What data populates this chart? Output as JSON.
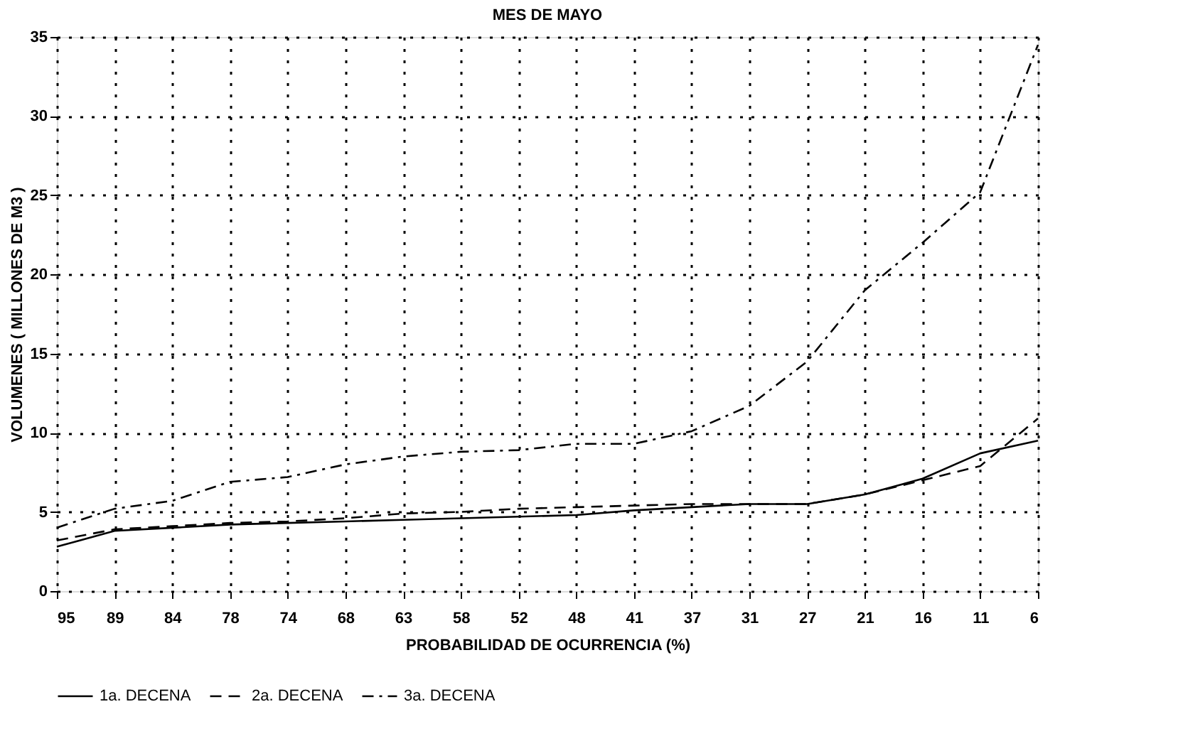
{
  "chart_data": {
    "type": "line",
    "title": "MES DE MAYO",
    "xlabel": "PROBABILIDAD DE OCURRENCIA (%)",
    "ylabel": "VOLUMENES  ( MILLONES DE M3 )",
    "categories": [
      "95",
      "89",
      "84",
      "78",
      "74",
      "68",
      "63",
      "58",
      "52",
      "48",
      "41",
      "37",
      "31",
      "27",
      "21",
      "16",
      "11",
      "6"
    ],
    "series": [
      {
        "name": "1a. DECENA",
        "color": "#000000",
        "line_style": "solid",
        "values": [
          2.8,
          3.8,
          4.0,
          4.2,
          4.3,
          4.4,
          4.5,
          4.6,
          4.7,
          4.8,
          5.1,
          5.3,
          5.5,
          5.5,
          6.1,
          7.1,
          8.7,
          9.5
        ]
      },
      {
        "name": "2a. DECENA",
        "color": "#000000",
        "line_style": "dashed",
        "values": [
          3.2,
          3.9,
          4.1,
          4.3,
          4.4,
          4.6,
          4.9,
          5.0,
          5.2,
          5.3,
          5.4,
          5.5,
          5.5,
          5.5,
          6.1,
          7.0,
          7.9,
          10.9
        ]
      },
      {
        "name": "3a. DECENA",
        "color": "#000000",
        "line_style": "dashdot",
        "values": [
          4.0,
          5.2,
          5.7,
          6.9,
          7.2,
          8.0,
          8.5,
          8.8,
          8.9,
          9.3,
          9.3,
          10.1,
          11.7,
          14.5,
          19.0,
          22.0,
          25.2,
          34.5
        ]
      }
    ],
    "ylim": [
      0,
      35
    ],
    "yticks": [
      0,
      5,
      10,
      15,
      20,
      25,
      30,
      35
    ],
    "grid": true,
    "legend": "bottom",
    "marker": "none"
  }
}
